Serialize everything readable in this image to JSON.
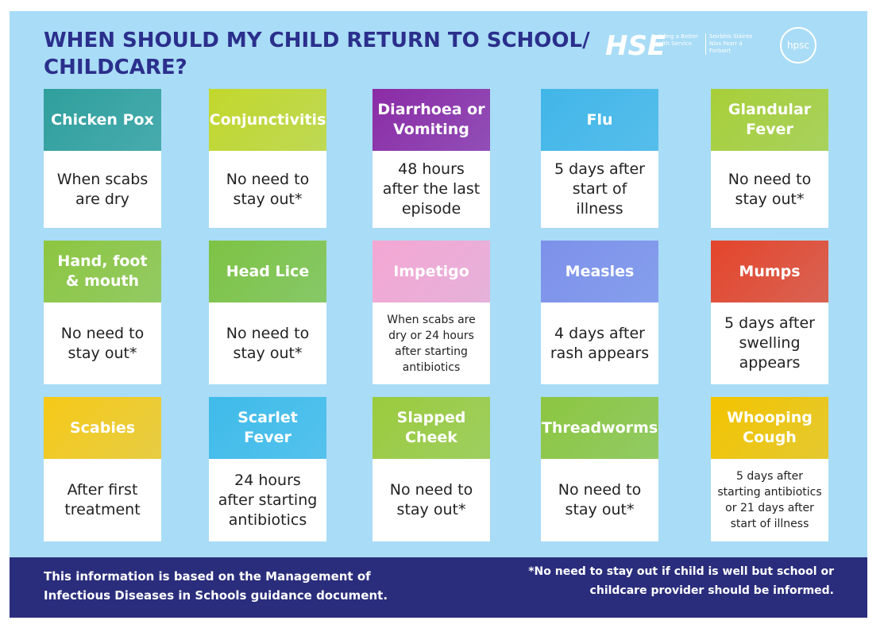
{
  "header": {
    "title": "WHEN SHOULD MY CHILD RETURN TO SCHOOL/ CHILDCARE?",
    "logo_hse_tagline": "Building a Better Health Service",
    "logo_hse_tagline_irish": "Seirbhís Sláinte Níos Fearr á Forbairt",
    "logo_hpsc": "hpsc"
  },
  "cards": [
    {
      "name": "Chicken Pox",
      "advice": "When scabs are dry",
      "color": "#2f9f9c"
    },
    {
      "name": "Conjunctivitis",
      "advice": "No need to stay out*",
      "color": "#c3d82c"
    },
    {
      "name": "Diarrhoea or Vomiting",
      "advice": "48 hours after the last episode",
      "color": "#8b2ba6"
    },
    {
      "name": "Flu",
      "advice": "5 days after start of illness",
      "color": "#41b6e8"
    },
    {
      "name": "Glandular Fever",
      "advice": "No need to stay out*",
      "color": "#a8cf38"
    },
    {
      "name": "Hand, foot & mouth",
      "advice": "No need to stay out*",
      "color": "#8dc640"
    },
    {
      "name": "Head Lice",
      "advice": "No need to stay out*",
      "color": "#7ec344"
    },
    {
      "name": "Impetigo",
      "advice": "When scabs are dry or 24 hours after starting antibiotics",
      "color": "#f4a7d3"
    },
    {
      "name": "Measles",
      "advice": "4 days after rash appears",
      "color": "#7d90ea"
    },
    {
      "name": "Mumps",
      "advice": "5 days after swelling appears",
      "color": "#e4452b"
    },
    {
      "name": "Scabies",
      "advice": "After first treatment",
      "color": "#f6c918"
    },
    {
      "name": "Scarlet Fever",
      "advice": "24 hours after starting antibiotics",
      "color": "#3fbbea"
    },
    {
      "name": "Slapped Cheek",
      "advice": "No need to stay out*",
      "color": "#9bcb3c"
    },
    {
      "name": "Threadworms",
      "advice": "No need to stay out*",
      "color": "#8cc640"
    },
    {
      "name": "Whooping Cough",
      "advice": "5 days after starting antibiotics or 21 days after start of illness",
      "color": "#f3c400"
    }
  ],
  "footer": {
    "left": "This information is based on the Management of Infectious Diseases in Schools guidance document.",
    "right": "*No need to stay out if child is well but school or childcare provider should be informed."
  }
}
